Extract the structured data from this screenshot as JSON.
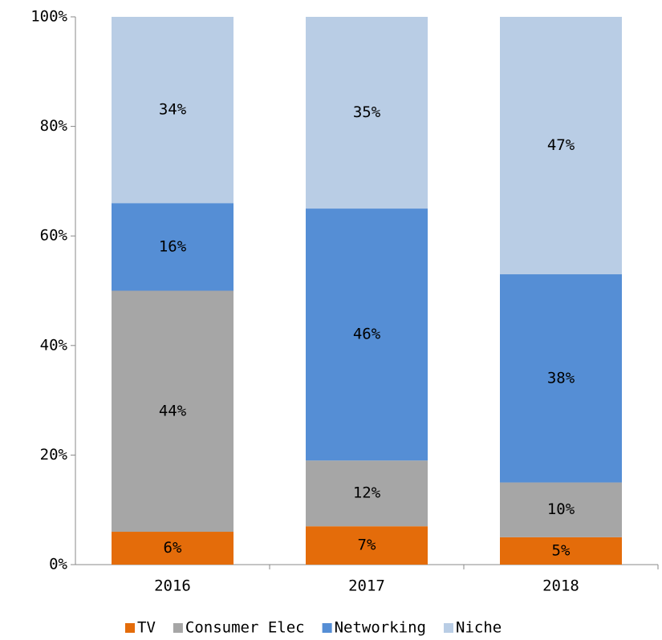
{
  "chart_data": {
    "type": "stacked_bar",
    "categories": [
      "2016",
      "2017",
      "2018"
    ],
    "series": [
      {
        "name": "TV",
        "color": "#e46c0a",
        "values": [
          6,
          7,
          5
        ],
        "value_labels": [
          "6%",
          "7%",
          "5%"
        ]
      },
      {
        "name": "Consumer Elec",
        "color": "#a6a6a6",
        "values": [
          44,
          12,
          10
        ],
        "value_labels": [
          "44%",
          "12%",
          "10%"
        ]
      },
      {
        "name": "Networking",
        "color": "#558ed5",
        "values": [
          16,
          46,
          38
        ],
        "value_labels": [
          "16%",
          "46%",
          "38%"
        ]
      },
      {
        "name": "Niche",
        "color": "#b9cde5",
        "values": [
          34,
          35,
          47
        ],
        "value_labels": [
          "34%",
          "35%",
          "47%"
        ]
      }
    ],
    "ylim": [
      0,
      100
    ],
    "yticks": [
      {
        "value": 0,
        "label": "0%"
      },
      {
        "value": 20,
        "label": "20%"
      },
      {
        "value": 40,
        "label": "40%"
      },
      {
        "value": 60,
        "label": "60%"
      },
      {
        "value": 80,
        "label": "80%"
      },
      {
        "value": 100,
        "label": "100%"
      }
    ],
    "legend": "bottom"
  }
}
